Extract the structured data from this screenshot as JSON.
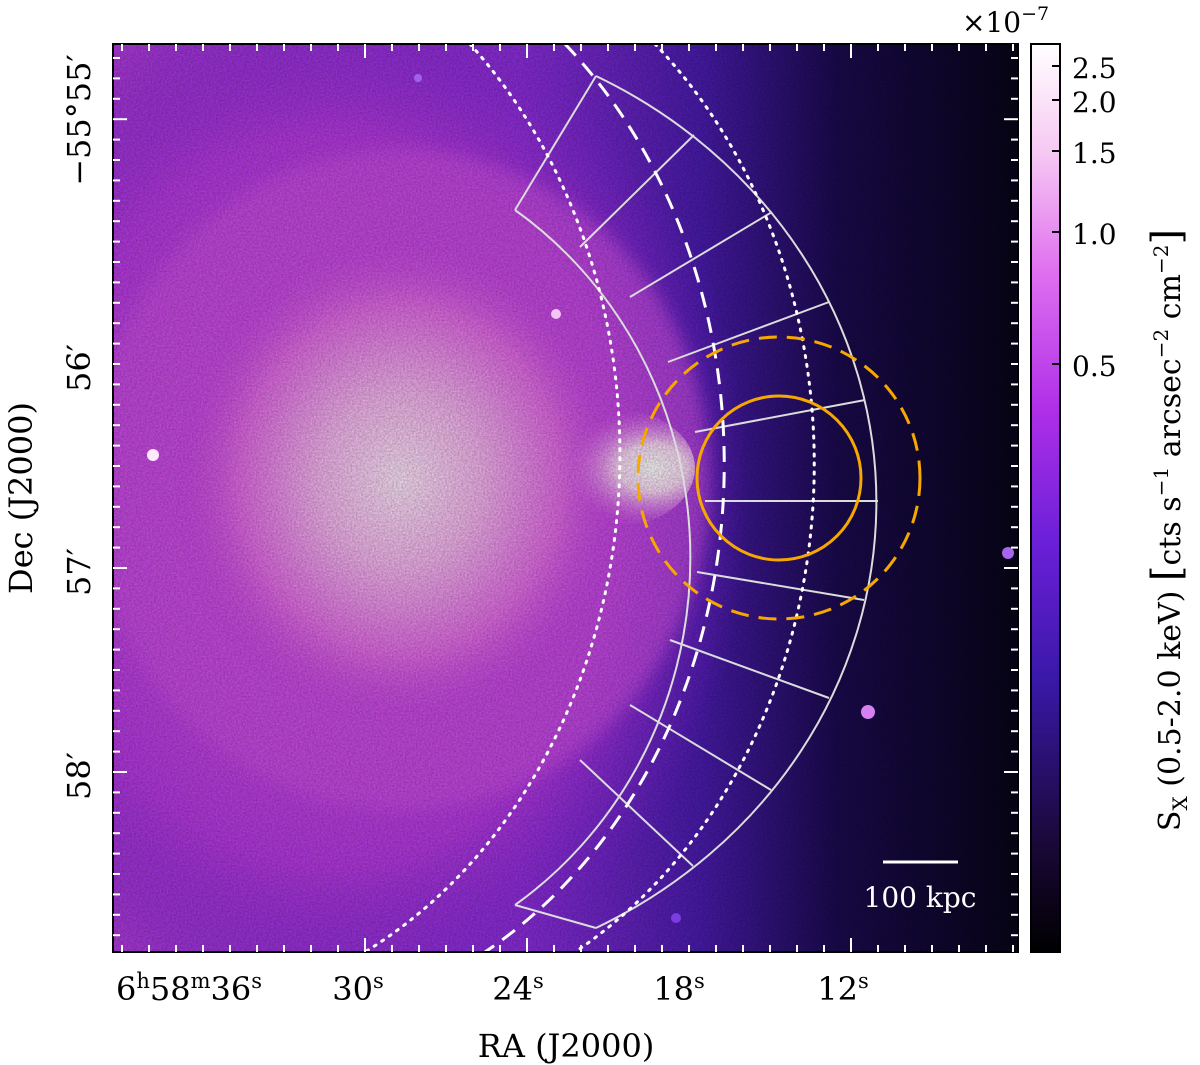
{
  "image": {
    "subject": "X-ray surface brightness map",
    "x_axis": {
      "label": "RA (J2000)",
      "ticks": [
        {
          "h": "6",
          "m": "58",
          "s": "36"
        },
        {
          "s": "30"
        },
        {
          "s": "24"
        },
        {
          "s": "18"
        },
        {
          "s": "12"
        }
      ]
    },
    "y_axis": {
      "label": "Dec (J2000)",
      "ticks": [
        "−55°55′",
        "56′",
        "57′",
        "58′"
      ]
    },
    "colorbar": {
      "multiplier_prefix": "×10",
      "multiplier_exp": "−7",
      "ticks": [
        "2.5",
        "2.0",
        "1.5",
        "1.0",
        "0.5"
      ],
      "label": {
        "S": "S",
        "sub": "X",
        "band": " (0.5-2.0 keV) ",
        "units_a": "cts s",
        "units_a_exp": "−1",
        "units_b": " arcsec",
        "units_b_exp": "−2",
        "units_c": " cm",
        "units_c_exp": "−2"
      },
      "colors": [
        "#000000",
        "#1a0838",
        "#3a18a8",
        "#6a1fd8",
        "#b030e8",
        "#e070f0",
        "#f6c8f2",
        "#ffffff"
      ]
    },
    "scale_bar": {
      "label": "100 kpc"
    },
    "overlay_colors": {
      "sector_grid": "#dcdcdc",
      "fronts": "#ffffff",
      "regions": "#f6a800"
    }
  }
}
